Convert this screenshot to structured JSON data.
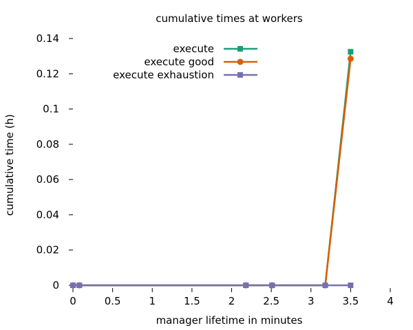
{
  "chart_data": {
    "type": "line",
    "title": "cumulative times at workers",
    "xlabel": "manager lifetime in minutes",
    "ylabel": "cumulative time (h)",
    "xlim": [
      0,
      4
    ],
    "ylim": [
      0,
      0.14
    ],
    "xticks": [
      0,
      0.5,
      1,
      1.5,
      2,
      2.5,
      3,
      3.5,
      4
    ],
    "xtick_labels": [
      "0",
      "0.5",
      "1",
      "1.5",
      "2",
      "2.5",
      "3",
      "3.5",
      "4"
    ],
    "yticks": [
      0,
      0.02,
      0.04,
      0.06,
      0.08,
      0.1,
      0.12,
      0.14
    ],
    "ytick_labels": [
      "0",
      "0.02",
      "0.04",
      "0.06",
      "0.08",
      "0.1",
      "0.12",
      "0.14"
    ],
    "grid": false,
    "legend_position": "top-right",
    "series": [
      {
        "name": "execute",
        "color": "#1a9e77",
        "marker": "square",
        "x": [
          0.0,
          0.08,
          2.18,
          2.51,
          3.18,
          3.5
        ],
        "y": [
          0,
          0,
          0,
          0,
          0,
          0.1325
        ]
      },
      {
        "name": "execute good",
        "color": "#d95f02",
        "marker": "circle",
        "x": [
          0.0,
          0.08,
          2.18,
          2.51,
          3.18,
          3.5
        ],
        "y": [
          0,
          0,
          0,
          0,
          0,
          0.1285
        ]
      },
      {
        "name": "execute exhaustion",
        "color": "#7570b3",
        "marker": "square",
        "x": [
          0.0,
          0.08,
          2.18,
          2.51,
          3.18,
          3.5
        ],
        "y": [
          0,
          0,
          0,
          0,
          0,
          0
        ]
      }
    ]
  }
}
